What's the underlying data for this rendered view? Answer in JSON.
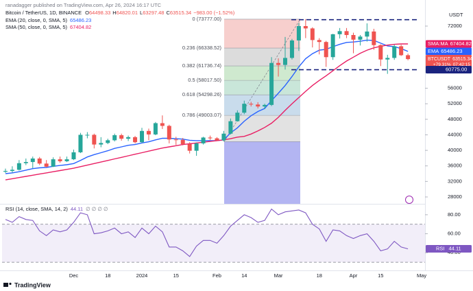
{
  "header": {
    "published": "ranadagger published on TradingView.com, Apr 26, 2024 16:17 UTC",
    "brand": "TradingView"
  },
  "chart_data": [
    {
      "type": "candlestick",
      "title": "Bitcoin / TetherUS, 1D, BINANCE",
      "ohlc": [
        {
          "label": "O",
          "value": "64498.33"
        },
        {
          "label": "H",
          "value": "64820.01"
        },
        {
          "label": "L",
          "value": "63297.48"
        },
        {
          "label": "C",
          "value": "63515.34"
        }
      ],
      "change": "−983.00 (−1.52%)",
      "currency": "USDT",
      "categories": [
        null,
        null,
        null,
        null,
        null,
        null,
        null,
        null,
        null,
        null,
        "Dec",
        null,
        null,
        null,
        null,
        "18",
        null,
        null,
        null,
        null,
        "2024",
        null,
        null,
        null,
        null,
        "15",
        null,
        null,
        null,
        null,
        null,
        "Feb",
        null,
        null,
        null,
        "14",
        null,
        null,
        null,
        null,
        "Mar",
        null,
        null,
        null,
        null,
        null,
        "18",
        null,
        null,
        null,
        null,
        "Apr",
        null,
        null,
        null,
        "15",
        null,
        null,
        null,
        null,
        null,
        "May"
      ],
      "open": [
        34500,
        34700,
        35000,
        36700,
        37000,
        37900,
        36600,
        35800,
        37700,
        37200,
        37700,
        39500,
        44000,
        44000,
        41500,
        41900,
        42600,
        43900,
        43000,
        43400,
        42100,
        45000,
        44100,
        47000,
        46300,
        42800,
        42700,
        41600,
        39900,
        41800,
        43300,
        43100,
        42600,
        44300,
        47500,
        49700,
        52000,
        51800,
        51300,
        51700,
        62500,
        62000,
        63800,
        68300,
        72000,
        71400,
        68400,
        67900,
        64000,
        69900,
        70700,
        69700,
        68500,
        69300,
        70600,
        67100,
        63400,
        63800,
        66800,
        64500,
        null,
        null
      ],
      "high": [
        35300,
        35900,
        37500,
        37900,
        38400,
        38300,
        37500,
        38200,
        38400,
        38400,
        40200,
        44500,
        44700,
        44300,
        43400,
        43000,
        44300,
        44300,
        43800,
        43700,
        45800,
        45600,
        47300,
        49000,
        46600,
        43500,
        43200,
        42100,
        42000,
        43500,
        43800,
        43400,
        45000,
        48200,
        50300,
        52800,
        52500,
        52400,
        52000,
        64000,
        63700,
        69200,
        68700,
        72800,
        73800,
        71700,
        68900,
        68200,
        70000,
        71500,
        71500,
        70300,
        69700,
        72700,
        71300,
        67300,
        64600,
        67200,
        67200,
        64900,
        null,
        null
      ],
      "low": [
        34200,
        34300,
        34800,
        36200,
        35400,
        36200,
        35600,
        35700,
        36800,
        37000,
        37500,
        39300,
        43100,
        40500,
        40800,
        41600,
        42300,
        42500,
        42400,
        41800,
        41900,
        42600,
        43900,
        45500,
        41800,
        41400,
        41300,
        39200,
        38600,
        41500,
        42700,
        42500,
        42300,
        44100,
        47400,
        49300,
        51300,
        50800,
        50600,
        51400,
        59000,
        60800,
        63400,
        65600,
        68900,
        66500,
        64700,
        61500,
        63300,
        68800,
        68900,
        65000,
        67000,
        68000,
        65900,
        61700,
        59700,
        63300,
        64300,
        63200,
        null,
        null
      ],
      "close": [
        34700,
        35000,
        36700,
        37000,
        37900,
        36600,
        35800,
        37700,
        37200,
        37700,
        39500,
        44000,
        44000,
        41500,
        41900,
        42600,
        43900,
        43000,
        43400,
        42100,
        45000,
        44100,
        47000,
        46300,
        42800,
        42700,
        41600,
        39900,
        41800,
        43300,
        43100,
        42600,
        44300,
        47500,
        49700,
        52000,
        51800,
        51300,
        51700,
        62500,
        62000,
        63800,
        68300,
        72000,
        71400,
        68400,
        67900,
        64000,
        69900,
        70700,
        69700,
        68500,
        69300,
        70600,
        67100,
        63400,
        63800,
        66800,
        64500,
        63500,
        null,
        null
      ],
      "up_color": "#26a69a",
      "down_color": "#ef5350",
      "series": [
        {
          "name": "EMA (20, close, 0, SMA, 5)",
          "tag": "EMA",
          "last_label": "65486.23",
          "color": "#2962ff",
          "values": [
            34000,
            34200,
            34500,
            34900,
            35300,
            35500,
            35600,
            35900,
            36100,
            36300,
            36600,
            37400,
            38300,
            38900,
            39400,
            39900,
            40500,
            40900,
            41300,
            41500,
            41900,
            42200,
            42700,
            43100,
            43100,
            43000,
            42900,
            42600,
            42500,
            42500,
            42500,
            42500,
            42700,
            44500,
            45800,
            47500,
            48900,
            50000,
            50800,
            52800,
            54700,
            56700,
            59000,
            61500,
            63600,
            64900,
            65800,
            66000,
            66700,
            67300,
            67800,
            67900,
            68100,
            68400,
            68300,
            67600,
            66900,
            66700,
            66200,
            65486,
            null,
            null
          ]
        },
        {
          "name": "SMA (50, close, 0, SMA, 5)",
          "tag": "SMA:MA",
          "last_label": "67404.82",
          "color": "#e91e63",
          "values": [
            32400,
            32700,
            33000,
            33300,
            33600,
            33900,
            34200,
            34500,
            34800,
            35100,
            35400,
            35800,
            36200,
            36600,
            37000,
            37400,
            37800,
            38200,
            38600,
            39000,
            39400,
            39800,
            40200,
            40600,
            40900,
            41200,
            41500,
            41700,
            41900,
            42100,
            42300,
            42500,
            42700,
            43000,
            43400,
            43600,
            44200,
            45000,
            45900,
            47000,
            48500,
            50300,
            52000,
            53600,
            55200,
            56700,
            58000,
            59200,
            60500,
            61800,
            63000,
            64000,
            65000,
            65800,
            66400,
            66800,
            67100,
            67300,
            67400,
            67404,
            null,
            null
          ]
        }
      ],
      "last_price": {
        "name": "BTCUSDT",
        "value": 63515.34,
        "label": "63515.34",
        "change": "+79.31%",
        "countdown": "07:42:15"
      },
      "fibonacci": [
        {
          "value": 73777,
          "label": "0 (73777.00)"
        },
        {
          "value": 66338.52,
          "label": "0.236 (66338.52)"
        },
        {
          "value": 61736.74,
          "label": "0.382 (61736.74)"
        },
        {
          "value": 58017.5,
          "label": "0.5 (58017.50)"
        },
        {
          "value": 54298.26,
          "label": "0.618 (54298.26)"
        },
        {
          "value": 49003.07,
          "label": "0.786 (49003.07)"
        },
        {
          "value": 42258,
          "label": null
        }
      ],
      "fib_colors": [
        "#f7cfcd",
        "#dcdcdc",
        "#cfe9cf",
        "#c9e6d9",
        "#c9dcec",
        "#e2e2e2"
      ],
      "fib_extension_color": "#b3b5f2",
      "hlines": [
        {
          "value": 73650,
          "label": null
        },
        {
          "value": 60775,
          "label": "60775.00"
        }
      ],
      "hline_color": "#1a237e",
      "ylim": [
        26230,
        75180
      ],
      "yticks": [
        28000,
        32000,
        36000,
        40000,
        44000,
        48000,
        52000,
        56000,
        72000
      ]
    },
    {
      "type": "line",
      "title": "RSI (14, close, SMA, 14, 2)",
      "value_label": "44.11",
      "extras": "∅ ∅ ∅ ∅",
      "tag": "RSI",
      "color": "#7e57c2",
      "values": [
        75,
        72,
        78,
        75,
        74,
        63,
        58,
        64,
        62,
        64,
        72,
        82,
        80,
        60,
        61,
        63,
        66,
        60,
        62,
        56,
        66,
        60,
        68,
        62,
        46,
        46,
        42,
        36,
        47,
        53,
        53,
        50,
        58,
        68,
        74,
        80,
        77,
        72,
        74,
        86,
        80,
        83,
        84,
        85,
        82,
        70,
        65,
        52,
        64,
        63,
        58,
        55,
        58,
        60,
        52,
        42,
        44,
        52,
        46,
        44.11,
        null,
        null
      ],
      "band": [
        30,
        70
      ],
      "ylim": [
        21.4,
        89.3
      ],
      "yticks": [
        {
          "value": 80,
          "label": "80.00"
        },
        {
          "value": 60,
          "label": "60.00"
        },
        {
          "value": 40,
          "label": "40.00"
        }
      ]
    }
  ]
}
